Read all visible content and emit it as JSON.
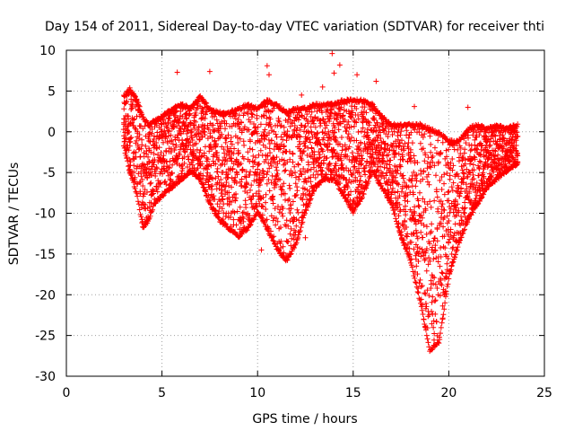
{
  "chart_data": {
    "type": "scatter",
    "title": "Day 154 of 2011, Sidereal Day-to-day VTEC variation (SDTVAR) for receiver thti",
    "xlabel": "GPS time / hours",
    "ylabel": "SDTVAR / TECUs",
    "xlim": [
      0,
      25
    ],
    "ylim": [
      -30,
      10
    ],
    "xticks": [
      0,
      5,
      10,
      15,
      20,
      25
    ],
    "yticks": [
      10,
      5,
      0,
      -5,
      -10,
      -15,
      -20,
      -25,
      -30
    ],
    "grid": true,
    "marker": "+",
    "color": "#ff0000",
    "series": [
      {
        "name": "SDTVAR",
        "envelope": {
          "x": [
            3.0,
            3.3,
            3.7,
            4.0,
            4.3,
            4.6,
            5.0,
            5.5,
            6.0,
            6.5,
            7.0,
            7.5,
            8.0,
            8.5,
            9.0,
            9.5,
            10.0,
            10.5,
            11.0,
            11.5,
            12.0,
            12.5,
            13.0,
            13.5,
            14.0,
            14.5,
            15.0,
            15.5,
            16.0,
            16.5,
            17.0,
            17.5,
            18.0,
            18.5,
            19.0,
            19.5,
            20.0,
            20.5,
            21.0,
            21.5,
            22.0,
            22.5,
            23.0,
            23.6
          ],
          "upper": [
            4.5,
            5.5,
            4.0,
            2.0,
            1.0,
            1.5,
            2.0,
            3.0,
            3.5,
            3.0,
            4.5,
            3.0,
            2.5,
            2.5,
            3.0,
            3.5,
            3.0,
            4.0,
            3.5,
            2.5,
            3.0,
            3.0,
            3.5,
            3.5,
            3.5,
            4.0,
            4.0,
            4.0,
            3.5,
            2.0,
            1.0,
            1.0,
            1.0,
            1.0,
            0.5,
            0.0,
            -1.0,
            -1.0,
            0.5,
            1.0,
            0.5,
            1.0,
            0.5,
            1.0
          ],
          "lower": [
            -2.0,
            -5.0,
            -8.0,
            -12.0,
            -11.0,
            -9.0,
            -8.0,
            -7.0,
            -6.0,
            -5.0,
            -6.0,
            -9.0,
            -11.0,
            -12.0,
            -13.0,
            -12.0,
            -10.0,
            -12.0,
            -14.5,
            -16.0,
            -14.0,
            -10.0,
            -7.0,
            -6.0,
            -6.0,
            -8.0,
            -10.0,
            -8.0,
            -5.0,
            -7.0,
            -9.0,
            -13.0,
            -16.0,
            -21.0,
            -27.0,
            -26.0,
            -18.0,
            -14.0,
            -11.0,
            -9.0,
            -7.0,
            -6.0,
            -5.0,
            -4.0
          ]
        },
        "outliers": [
          {
            "x": 5.8,
            "y": 7.3
          },
          {
            "x": 7.5,
            "y": 7.4
          },
          {
            "x": 10.5,
            "y": 8.1
          },
          {
            "x": 10.6,
            "y": 7.0
          },
          {
            "x": 12.3,
            "y": 4.5
          },
          {
            "x": 13.4,
            "y": 5.5
          },
          {
            "x": 13.9,
            "y": 9.6
          },
          {
            "x": 14.0,
            "y": 7.2
          },
          {
            "x": 14.3,
            "y": 8.2
          },
          {
            "x": 15.2,
            "y": 7.0
          },
          {
            "x": 16.2,
            "y": 6.2
          },
          {
            "x": 18.2,
            "y": 3.1
          },
          {
            "x": 21.0,
            "y": 3.0
          },
          {
            "x": 10.2,
            "y": -14.5
          },
          {
            "x": 12.5,
            "y": -13.0
          }
        ]
      }
    ]
  }
}
